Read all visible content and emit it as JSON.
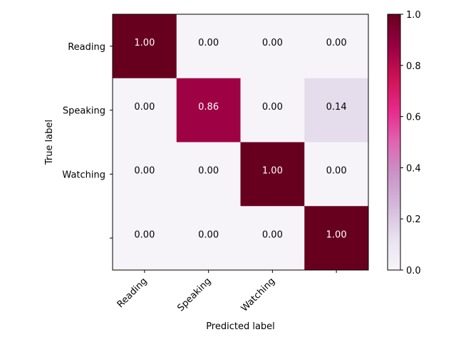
{
  "chart_data": {
    "type": "heatmap",
    "title": "",
    "xlabel": "Predicted label",
    "ylabel": "True label",
    "x_categories": [
      "Reading",
      "Speaking",
      "Watching",
      ""
    ],
    "y_categories": [
      "Reading",
      "Speaking",
      "Watching",
      ""
    ],
    "values": [
      [
        1.0,
        0.0,
        0.0,
        0.0
      ],
      [
        0.0,
        0.86,
        0.0,
        0.14
      ],
      [
        0.0,
        0.0,
        1.0,
        0.0
      ],
      [
        0.0,
        0.0,
        0.0,
        1.0
      ]
    ],
    "cell_labels": [
      [
        "1.00",
        "0.00",
        "0.00",
        "0.00"
      ],
      [
        "0.00",
        "0.86",
        "0.00",
        "0.14"
      ],
      [
        "0.00",
        "0.00",
        "1.00",
        "0.00"
      ],
      [
        "0.00",
        "0.00",
        "0.00",
        "1.00"
      ]
    ],
    "colormap": "PuRd",
    "colorbar": {
      "range": [
        0.0,
        1.0
      ],
      "ticks": [
        "0.0",
        "0.2",
        "0.4",
        "0.6",
        "0.8",
        "1.0"
      ]
    },
    "x_tick_rotation": 45,
    "grid": false
  }
}
